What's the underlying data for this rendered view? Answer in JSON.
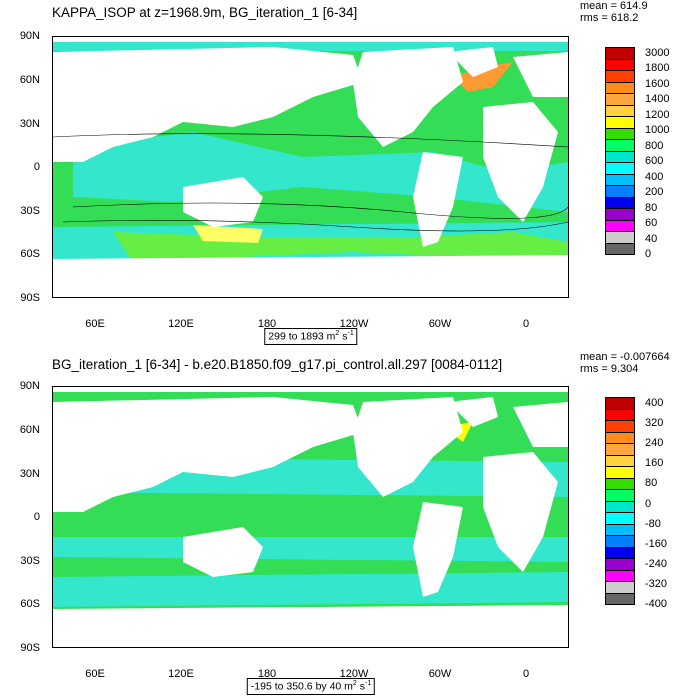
{
  "panels": {
    "top": {
      "title": "KAPPA_ISOP at z=1968.9m, BG_iteration_1 [6-34]",
      "mean": "mean = 614.9",
      "rms": "rms = 618.2",
      "range_prefix": "299 to 1893 m",
      "range_suffix": " s",
      "colorbar": {
        "labels": [
          "3000",
          "1800",
          "1600",
          "1400",
          "1200",
          "1000",
          "800",
          "600",
          "400",
          "200",
          "80",
          "60",
          "40",
          "0"
        ],
        "colors": [
          "#c00000",
          "#ff0000",
          "#ff4000",
          "#ff8c1a",
          "#ffa640",
          "#ffd040",
          "#ffff00",
          "#33dd00",
          "#00ff66",
          "#00e6cc",
          "#00ffff",
          "#00bfff",
          "#0080ff",
          "#0000ee",
          "#9900cc",
          "#ff00ff",
          "#cccccc",
          "#666666"
        ]
      }
    },
    "bottom": {
      "title": "BG_iteration_1 [6-34] - b.e20.B1850.f09_g17.pi_control.all.297 [0084-0112]",
      "mean": "mean = -0.007664",
      "rms": "rms = 9.304",
      "range_prefix": "-195 to 350.6 by 40 m",
      "range_suffix": " s",
      "colorbar": {
        "labels": [
          "400",
          "320",
          "240",
          "160",
          "80",
          "0",
          "-80",
          "-160",
          "-240",
          "-320",
          "-400"
        ],
        "colors": [
          "#c00000",
          "#ff0000",
          "#ff4000",
          "#ff8c1a",
          "#ffa640",
          "#ffd040",
          "#ffff00",
          "#33dd00",
          "#00ff66",
          "#00e6cc",
          "#00ffff",
          "#00bfff",
          "#0080ff",
          "#0000ee",
          "#9900cc",
          "#ff00ff",
          "#cccccc",
          "#666666"
        ]
      }
    }
  },
  "axes": {
    "lat_labels": [
      "90N",
      "60N",
      "30N",
      "0",
      "30S",
      "60S",
      "90S"
    ],
    "lon_labels": [
      "60E",
      "120E",
      "180",
      "120W",
      "60W",
      "0"
    ]
  },
  "colors": {
    "ocean_green": "#33dd55",
    "ocean_cyan": "#33e6cc",
    "ocean_light_green": "#66ee44",
    "land": "#ffffff"
  }
}
